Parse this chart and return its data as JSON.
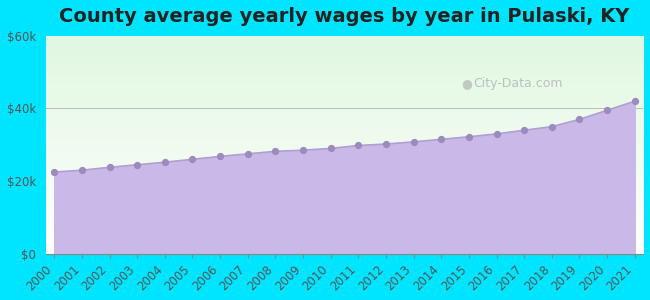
{
  "title": "County average yearly wages by year in Pulaski, KY",
  "years": [
    2000,
    2001,
    2002,
    2003,
    2004,
    2005,
    2006,
    2007,
    2008,
    2009,
    2010,
    2011,
    2012,
    2013,
    2014,
    2015,
    2016,
    2017,
    2018,
    2019,
    2020,
    2021
  ],
  "wages": [
    22500,
    23000,
    23800,
    24500,
    25200,
    26000,
    26800,
    27500,
    28200,
    28500,
    29000,
    29800,
    30200,
    30800,
    31500,
    32200,
    33000,
    34000,
    35000,
    37000,
    39500,
    42000
  ],
  "ylim": [
    0,
    60000
  ],
  "yticks": [
    0,
    20000,
    40000,
    60000
  ],
  "ytick_labels": [
    "$0",
    "$20k",
    "$40k",
    "$60k"
  ],
  "fill_color": "#c9b8e8",
  "line_color": "#b09fd0",
  "dot_color": "#9b8bbf",
  "bg_outer_color": "#00e5ff",
  "watermark_text": "City-Data.com",
  "title_fontsize": 14,
  "tick_fontsize": 8.5
}
